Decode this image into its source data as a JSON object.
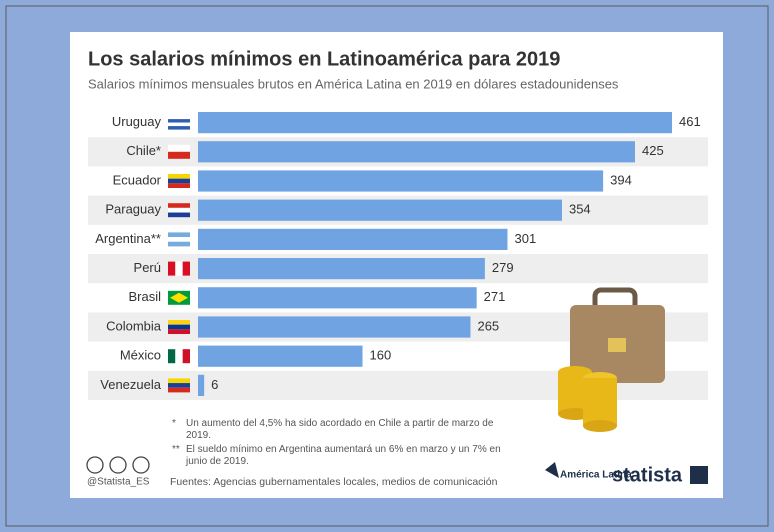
{
  "chart_data": {
    "type": "bar",
    "orientation": "horizontal",
    "title": "Los salarios mínimos en Latinoamérica para 2019",
    "subtitle": "Salarios mínimos mensuales brutos en América Latina en 2019 en dólares estadounidenses",
    "categories": [
      "Uruguay",
      "Chile*",
      "Ecuador",
      "Paraguay",
      "Argentina**",
      "Perú",
      "Brasil",
      "Colombia",
      "México",
      "Venezuela"
    ],
    "values": [
      461,
      425,
      394,
      354,
      301,
      279,
      271,
      265,
      160,
      6
    ],
    "color": "#6fa3e2",
    "notes": [
      {
        "mark": "*",
        "text": "Un aumento del 4,5% ha sido acordado en Chile a partir de marzo de 2019."
      },
      {
        "mark": "**",
        "text": "El sueldo mínimo en Argentina aumentará un 6% en marzo y un 7% en junio de 2019."
      }
    ],
    "source": "Fuentes: Agencias gubernamentales locales, medios de comunicación",
    "credit": "@Statista_ES",
    "partner": "América Latina",
    "brand": "statista"
  }
}
